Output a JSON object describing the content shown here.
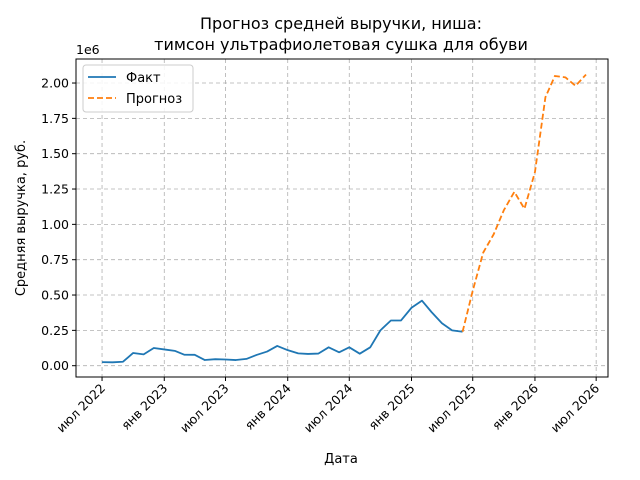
{
  "chart_data": {
    "type": "line",
    "title": [
      "Прогноз средней выручки, ниша:",
      "тимсон ультрафиолетовая сушка для обуви"
    ],
    "xlabel": "Дата",
    "ylabel": "Средняя выручка, руб.",
    "y_offset_label": "1e6",
    "y_multiplier": 1000000,
    "ylim": [
      -0.08,
      2.17
    ],
    "xlim": [
      "2022-04-15",
      "2026-08-05"
    ],
    "grid": true,
    "legend_position": "top-left",
    "x_ticks": [
      {
        "date": "2022-07-01",
        "label": "июл 2022"
      },
      {
        "date": "2023-01-01",
        "label": "янв 2023"
      },
      {
        "date": "2023-07-01",
        "label": "июл 2023"
      },
      {
        "date": "2024-01-01",
        "label": "янв 2024"
      },
      {
        "date": "2024-07-01",
        "label": "июл 2024"
      },
      {
        "date": "2025-01-01",
        "label": "янв 2025"
      },
      {
        "date": "2025-07-01",
        "label": "июл 2025"
      },
      {
        "date": "2026-01-01",
        "label": "янв 2026"
      },
      {
        "date": "2026-07-01",
        "label": "июл 2026"
      }
    ],
    "y_ticks": [
      {
        "value": 0.0,
        "label": "0.00"
      },
      {
        "value": 0.25,
        "label": "0.25"
      },
      {
        "value": 0.5,
        "label": "0.50"
      },
      {
        "value": 0.75,
        "label": "0.75"
      },
      {
        "value": 1.0,
        "label": "1.00"
      },
      {
        "value": 1.25,
        "label": "1.25"
      },
      {
        "value": 1.5,
        "label": "1.50"
      },
      {
        "value": 1.75,
        "label": "1.75"
      },
      {
        "value": 2.0,
        "label": "2.00"
      }
    ],
    "series": [
      {
        "name": "Факт",
        "color": "#1f77b4",
        "style": "solid",
        "points": [
          [
            "2022-07-01",
            0.025
          ],
          [
            "2022-08-01",
            0.024
          ],
          [
            "2022-09-01",
            0.028
          ],
          [
            "2022-10-01",
            0.09
          ],
          [
            "2022-11-01",
            0.08
          ],
          [
            "2022-12-01",
            0.125
          ],
          [
            "2023-01-01",
            0.115
          ],
          [
            "2023-02-01",
            0.105
          ],
          [
            "2023-03-01",
            0.078
          ],
          [
            "2023-04-01",
            0.077
          ],
          [
            "2023-05-01",
            0.04
          ],
          [
            "2023-06-01",
            0.046
          ],
          [
            "2023-07-01",
            0.044
          ],
          [
            "2023-08-01",
            0.04
          ],
          [
            "2023-09-01",
            0.048
          ],
          [
            "2023-10-01",
            0.076
          ],
          [
            "2023-11-01",
            0.1
          ],
          [
            "2023-12-01",
            0.14
          ],
          [
            "2024-01-01",
            0.11
          ],
          [
            "2024-02-01",
            0.087
          ],
          [
            "2024-03-01",
            0.083
          ],
          [
            "2024-04-01",
            0.086
          ],
          [
            "2024-05-01",
            0.13
          ],
          [
            "2024-06-01",
            0.095
          ],
          [
            "2024-07-01",
            0.13
          ],
          [
            "2024-08-01",
            0.085
          ],
          [
            "2024-09-01",
            0.13
          ],
          [
            "2024-10-01",
            0.25
          ],
          [
            "2024-11-01",
            0.32
          ],
          [
            "2024-12-01",
            0.32
          ],
          [
            "2025-01-01",
            0.41
          ],
          [
            "2025-02-01",
            0.46
          ],
          [
            "2025-03-01",
            0.38
          ],
          [
            "2025-04-01",
            0.3
          ],
          [
            "2025-05-01",
            0.25
          ],
          [
            "2025-06-01",
            0.24
          ]
        ]
      },
      {
        "name": "Прогноз",
        "color": "#ff7f0e",
        "style": "dashed",
        "points": [
          [
            "2025-06-01",
            0.24
          ],
          [
            "2025-07-01",
            0.53
          ],
          [
            "2025-08-01",
            0.8
          ],
          [
            "2025-09-01",
            0.93
          ],
          [
            "2025-10-01",
            1.1
          ],
          [
            "2025-11-01",
            1.23
          ],
          [
            "2025-12-01",
            1.11
          ],
          [
            "2026-01-01",
            1.37
          ],
          [
            "2026-02-01",
            1.9
          ],
          [
            "2026-03-01",
            2.05
          ],
          [
            "2026-04-01",
            2.04
          ],
          [
            "2026-05-01",
            1.98
          ],
          [
            "2026-06-01",
            2.06
          ]
        ]
      }
    ]
  }
}
